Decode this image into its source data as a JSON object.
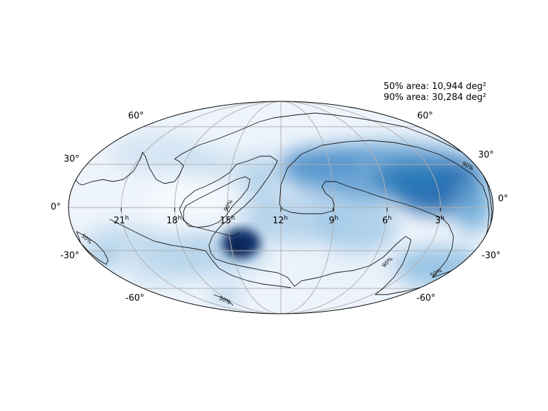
{
  "area_stats": {
    "line_50": "50% area: 10,944 deg²",
    "line_90": "90% area: 30,284 deg²"
  },
  "latitude_labels": {
    "left_p60": "60°",
    "left_p30": "30°",
    "left_0": "0°",
    "left_m30": "-30°",
    "left_m60": "-60°",
    "right_p60": "60°",
    "right_p30": "30°",
    "right_0": "0°",
    "right_m30": "-30°",
    "right_m60": "-60°"
  },
  "ra_labels": [
    {
      "hour": "21",
      "sup": "h"
    },
    {
      "hour": "18",
      "sup": "h"
    },
    {
      "hour": "15",
      "sup": "h"
    },
    {
      "hour": "12",
      "sup": "h"
    },
    {
      "hour": "9",
      "sup": "h"
    },
    {
      "hour": "6",
      "sup": "h"
    },
    {
      "hour": "3",
      "sup": "h"
    }
  ],
  "contour_labels": {
    "c90_a": "90%",
    "c90_b": "90%",
    "c90_c": "90%",
    "c50_a": "50%",
    "c50_b": "50%",
    "c50_c": "50%"
  },
  "colors": {
    "background": "#ffffff",
    "map_low": "#f5f9fe",
    "map_high": "#08306b",
    "grid": "#b0b0b0",
    "contour": "#111111",
    "outline": "#000000"
  },
  "projection": "mollweide"
}
